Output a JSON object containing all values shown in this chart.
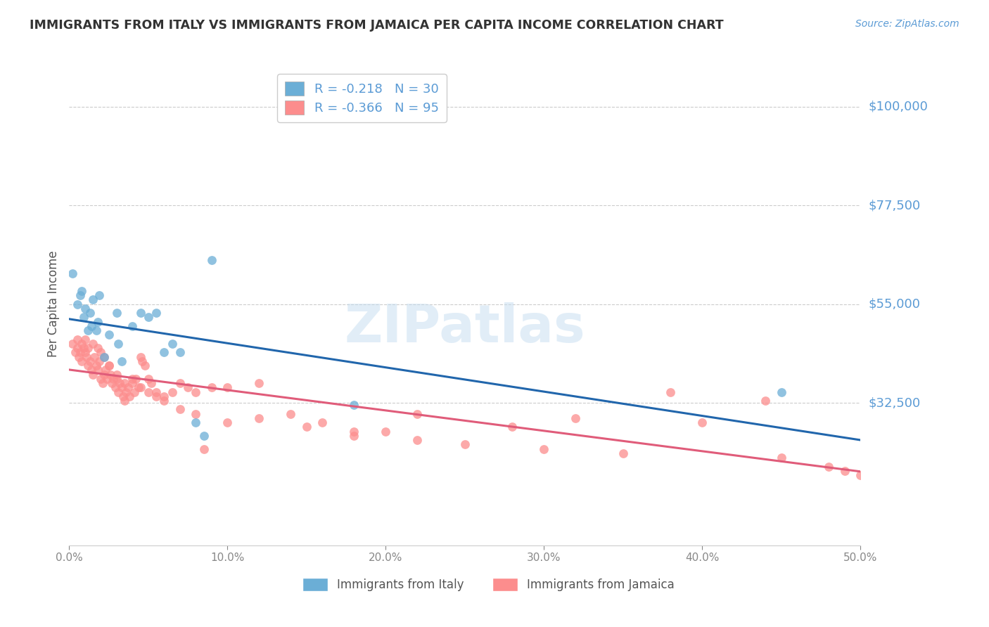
{
  "title": "IMMIGRANTS FROM ITALY VS IMMIGRANTS FROM JAMAICA PER CAPITA INCOME CORRELATION CHART",
  "source": "Source: ZipAtlas.com",
  "ylabel": "Per Capita Income",
  "ymin": 0,
  "ymax": 110000,
  "xmin": 0.0,
  "xmax": 0.5,
  "italy_color": "#6baed6",
  "jamaica_color": "#fc8d8d",
  "italy_line_color": "#2166ac",
  "jamaica_line_color": "#e05c7a",
  "italy_R": -0.218,
  "italy_N": 30,
  "jamaica_R": -0.366,
  "jamaica_N": 95,
  "italy_scatter_x": [
    0.002,
    0.005,
    0.007,
    0.008,
    0.009,
    0.01,
    0.012,
    0.013,
    0.014,
    0.015,
    0.017,
    0.018,
    0.019,
    0.022,
    0.025,
    0.03,
    0.031,
    0.033,
    0.04,
    0.045,
    0.05,
    0.055,
    0.06,
    0.065,
    0.07,
    0.08,
    0.085,
    0.09,
    0.18,
    0.45
  ],
  "italy_scatter_y": [
    62000,
    55000,
    57000,
    58000,
    52000,
    54000,
    49000,
    53000,
    50000,
    56000,
    49000,
    51000,
    57000,
    43000,
    48000,
    53000,
    46000,
    42000,
    50000,
    53000,
    52000,
    53000,
    44000,
    46000,
    44000,
    28000,
    25000,
    65000,
    32000,
    35000
  ],
  "jamaica_scatter_x": [
    0.002,
    0.004,
    0.005,
    0.006,
    0.007,
    0.008,
    0.009,
    0.01,
    0.011,
    0.012,
    0.013,
    0.014,
    0.015,
    0.016,
    0.017,
    0.018,
    0.019,
    0.02,
    0.021,
    0.022,
    0.023,
    0.024,
    0.025,
    0.026,
    0.027,
    0.028,
    0.029,
    0.03,
    0.031,
    0.032,
    0.033,
    0.034,
    0.035,
    0.036,
    0.037,
    0.038,
    0.04,
    0.041,
    0.042,
    0.044,
    0.045,
    0.046,
    0.048,
    0.05,
    0.052,
    0.055,
    0.06,
    0.065,
    0.07,
    0.075,
    0.08,
    0.085,
    0.09,
    0.1,
    0.12,
    0.14,
    0.16,
    0.18,
    0.2,
    0.22,
    0.28,
    0.32,
    0.38,
    0.44,
    0.005,
    0.008,
    0.01,
    0.012,
    0.015,
    0.018,
    0.02,
    0.022,
    0.025,
    0.03,
    0.035,
    0.04,
    0.045,
    0.05,
    0.055,
    0.06,
    0.07,
    0.08,
    0.1,
    0.12,
    0.15,
    0.18,
    0.22,
    0.25,
    0.3,
    0.35,
    0.4,
    0.45,
    0.48,
    0.49,
    0.5
  ],
  "jamaica_scatter_y": [
    46000,
    44000,
    45000,
    43000,
    44000,
    42000,
    45000,
    44000,
    43000,
    41000,
    42000,
    40000,
    39000,
    43000,
    41000,
    40000,
    42000,
    38000,
    37000,
    39000,
    40000,
    38000,
    41000,
    39000,
    37000,
    38000,
    36000,
    38000,
    35000,
    37000,
    36000,
    34000,
    33000,
    35000,
    36000,
    34000,
    37000,
    35000,
    38000,
    36000,
    43000,
    42000,
    41000,
    38000,
    37000,
    35000,
    34000,
    35000,
    37000,
    36000,
    35000,
    22000,
    36000,
    36000,
    37000,
    30000,
    28000,
    25000,
    26000,
    30000,
    27000,
    29000,
    35000,
    33000,
    47000,
    46000,
    47000,
    45000,
    46000,
    45000,
    44000,
    43000,
    41000,
    39000,
    37000,
    38000,
    36000,
    35000,
    34000,
    33000,
    31000,
    30000,
    28000,
    29000,
    27000,
    26000,
    24000,
    23000,
    22000,
    21000,
    28000,
    20000,
    18000,
    17000,
    16000
  ],
  "background_color": "#ffffff",
  "grid_color": "#cccccc",
  "title_color": "#333333",
  "ytick_positions": [
    32500,
    55000,
    77500,
    100000
  ],
  "ytick_labels": [
    "$32,500",
    "$55,000",
    "$77,500",
    "$100,000"
  ],
  "xtick_positions": [
    0.0,
    0.1,
    0.2,
    0.3,
    0.4,
    0.5
  ],
  "xtick_labels": [
    "0.0%",
    "10.0%",
    "20.0%",
    "30.0%",
    "40.0%",
    "50.0%"
  ],
  "watermark_text": "ZIPatlas",
  "legend_italy_label": "Immigrants from Italy",
  "legend_jamaica_label": "Immigrants from Jamaica",
  "label_color": "#5b9bd5"
}
